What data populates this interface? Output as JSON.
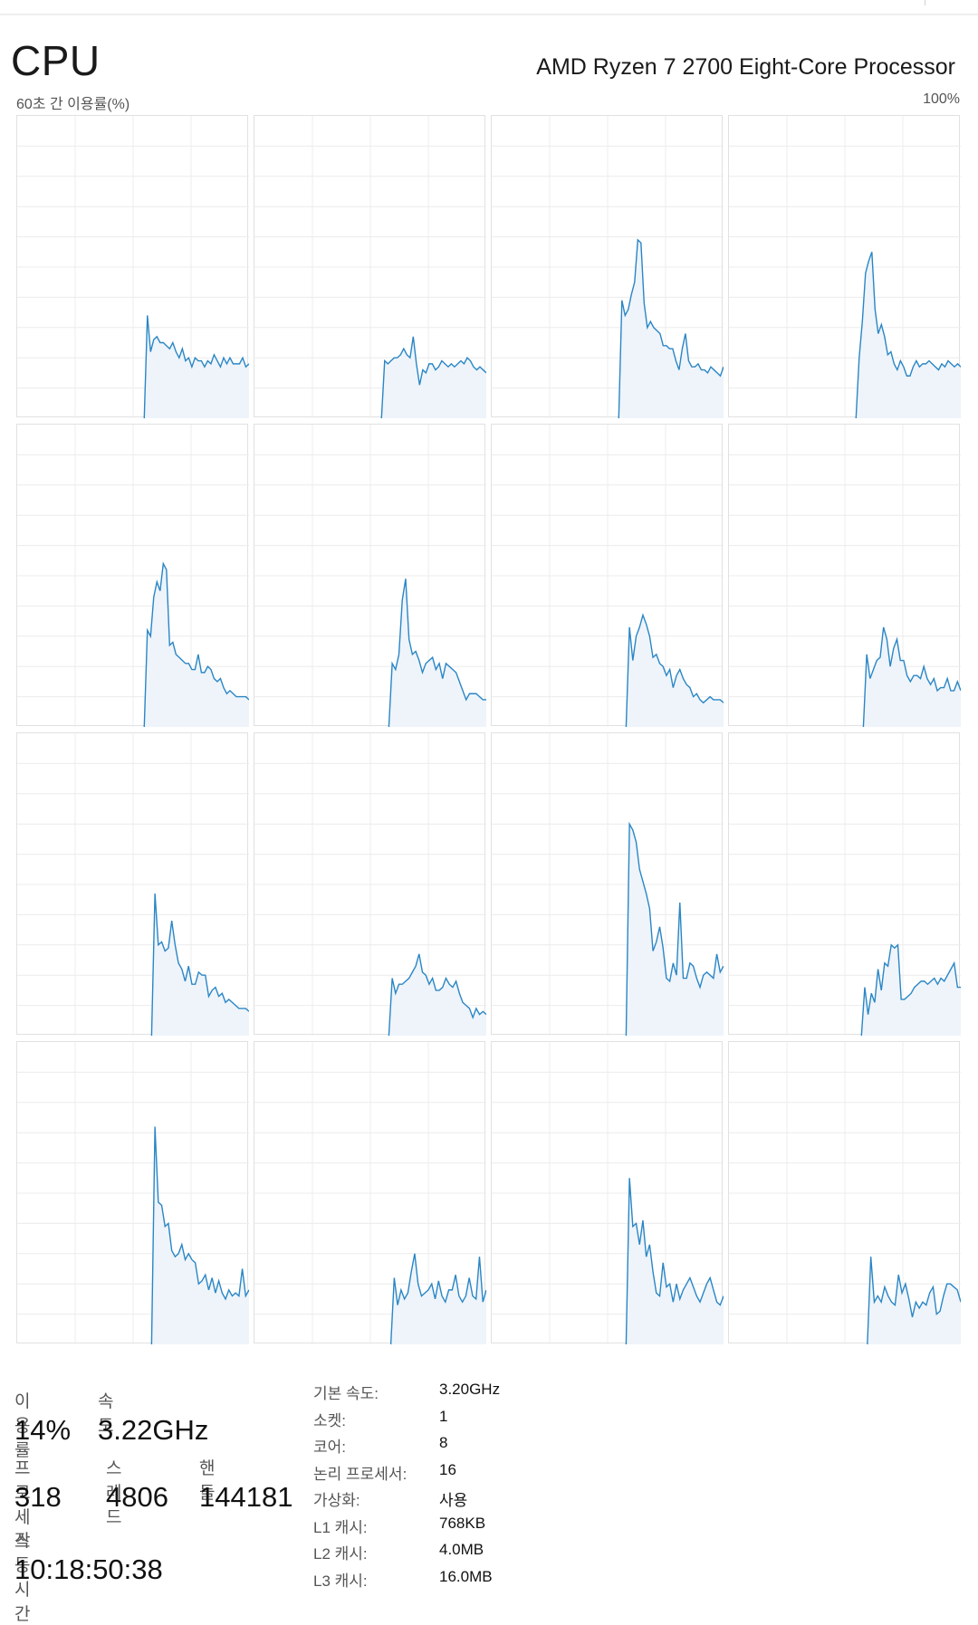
{
  "header": {
    "title": "CPU",
    "processor": "AMD Ryzen 7 2700 Eight-Core Processor",
    "graph_caption": "60초 간 이용률(%)",
    "graph_max": "100%"
  },
  "colors": {
    "line": "#2a86c5",
    "fill": "#eef4fa",
    "grid": "#ececec",
    "border": "#e1e1e1"
  },
  "cores": [
    {
      "values": [
        null,
        null,
        null,
        null,
        null,
        null,
        null,
        null,
        null,
        null,
        null,
        null,
        null,
        null,
        null,
        null,
        null,
        null,
        null,
        null,
        null,
        null,
        null,
        null,
        null,
        null,
        null,
        null,
        null,
        null,
        null,
        null,
        null,
        null,
        null,
        null,
        null,
        null,
        null,
        null,
        0,
        34,
        22,
        26,
        27,
        25,
        25,
        24,
        23,
        25,
        22,
        20,
        23,
        19,
        20,
        17,
        20,
        19,
        19,
        17,
        19,
        18,
        21,
        19,
        17,
        20,
        18,
        20,
        18,
        18,
        18,
        20,
        17,
        18
      ]
    },
    {
      "values": [
        null,
        null,
        null,
        null,
        null,
        null,
        null,
        null,
        null,
        null,
        null,
        null,
        null,
        null,
        null,
        null,
        null,
        null,
        null,
        null,
        null,
        null,
        null,
        null,
        null,
        null,
        null,
        null,
        null,
        null,
        null,
        null,
        null,
        null,
        null,
        null,
        null,
        null,
        null,
        null,
        0,
        19,
        18,
        19,
        20,
        20,
        21,
        23,
        21,
        20,
        27,
        18,
        11,
        16,
        15,
        18,
        18,
        16,
        17,
        19,
        18,
        17,
        18,
        17,
        18,
        19,
        18,
        20,
        19,
        17,
        16,
        17,
        16,
        15
      ]
    },
    {
      "values": [
        null,
        null,
        null,
        null,
        null,
        null,
        null,
        null,
        null,
        null,
        null,
        null,
        null,
        null,
        null,
        null,
        null,
        null,
        null,
        null,
        null,
        null,
        null,
        null,
        null,
        null,
        null,
        null,
        null,
        null,
        null,
        null,
        null,
        null,
        null,
        null,
        null,
        null,
        null,
        null,
        0,
        39,
        34,
        36,
        41,
        45,
        59,
        58,
        38,
        30,
        32,
        30,
        29,
        28,
        24,
        24,
        23,
        23,
        19,
        16,
        23,
        28,
        19,
        17,
        17,
        18,
        16,
        16,
        15,
        17,
        16,
        15,
        14,
        17
      ]
    },
    {
      "values": [
        null,
        null,
        null,
        null,
        null,
        null,
        null,
        null,
        null,
        null,
        null,
        null,
        null,
        null,
        null,
        null,
        null,
        null,
        null,
        null,
        null,
        null,
        null,
        null,
        null,
        null,
        null,
        null,
        null,
        null,
        null,
        null,
        null,
        null,
        null,
        null,
        null,
        null,
        null,
        null,
        0,
        20,
        32,
        48,
        52,
        55,
        36,
        28,
        31,
        27,
        21,
        22,
        18,
        16,
        19,
        17,
        14,
        14,
        17,
        19,
        17,
        18,
        18,
        19,
        18,
        17,
        16,
        18,
        17,
        19,
        18,
        17,
        18,
        17
      ]
    },
    {
      "values": [
        null,
        null,
        null,
        null,
        null,
        null,
        null,
        null,
        null,
        null,
        null,
        null,
        null,
        null,
        null,
        null,
        null,
        null,
        null,
        null,
        null,
        null,
        null,
        null,
        null,
        null,
        null,
        null,
        null,
        null,
        null,
        null,
        null,
        null,
        null,
        null,
        null,
        null,
        null,
        null,
        0,
        32,
        30,
        43,
        48,
        45,
        54,
        52,
        27,
        28,
        24,
        23,
        22,
        21,
        21,
        19,
        19,
        24,
        18,
        18,
        20,
        19,
        16,
        15,
        16,
        13,
        11,
        12,
        11,
        10,
        10,
        10,
        10,
        9
      ]
    },
    {
      "values": [
        null,
        null,
        null,
        null,
        null,
        null,
        null,
        null,
        null,
        null,
        null,
        null,
        null,
        null,
        null,
        null,
        null,
        null,
        null,
        null,
        null,
        null,
        null,
        null,
        null,
        null,
        null,
        null,
        null,
        null,
        null,
        null,
        null,
        null,
        null,
        null,
        null,
        null,
        null,
        null,
        0,
        21,
        19,
        24,
        42,
        49,
        29,
        24,
        25,
        22,
        18,
        21,
        22,
        23,
        19,
        21,
        16,
        21,
        20,
        19,
        18,
        15,
        12,
        9,
        11,
        11,
        11,
        10,
        9,
        9
      ]
    },
    {
      "values": [
        null,
        null,
        null,
        null,
        null,
        null,
        null,
        null,
        null,
        null,
        null,
        null,
        null,
        null,
        null,
        null,
        null,
        null,
        null,
        null,
        null,
        null,
        null,
        null,
        null,
        null,
        null,
        null,
        null,
        null,
        null,
        null,
        null,
        null,
        null,
        null,
        null,
        null,
        null,
        null,
        0,
        33,
        22,
        30,
        33,
        37,
        34,
        30,
        23,
        24,
        21,
        20,
        17,
        19,
        13,
        17,
        19,
        16,
        14,
        13,
        10,
        11,
        9,
        8,
        9,
        10,
        9,
        9,
        9,
        8
      ]
    },
    {
      "values": [
        null,
        null,
        null,
        null,
        null,
        null,
        null,
        null,
        null,
        null,
        null,
        null,
        null,
        null,
        null,
        null,
        null,
        null,
        null,
        null,
        null,
        null,
        null,
        null,
        null,
        null,
        null,
        null,
        null,
        null,
        null,
        null,
        null,
        null,
        null,
        null,
        null,
        null,
        null,
        null,
        0,
        24,
        16,
        19,
        22,
        23,
        33,
        29,
        20,
        26,
        29,
        22,
        22,
        17,
        15,
        17,
        17,
        16,
        20,
        16,
        14,
        16,
        12,
        13,
        13,
        16,
        12,
        12,
        15,
        12
      ]
    },
    {
      "values": [
        null,
        null,
        null,
        null,
        null,
        null,
        null,
        null,
        null,
        null,
        null,
        null,
        null,
        null,
        null,
        null,
        null,
        null,
        null,
        null,
        null,
        null,
        null,
        null,
        null,
        null,
        null,
        null,
        null,
        null,
        null,
        null,
        null,
        null,
        null,
        null,
        null,
        null,
        null,
        null,
        0,
        47,
        30,
        31,
        28,
        29,
        38,
        30,
        24,
        22,
        18,
        23,
        17,
        17,
        21,
        20,
        20,
        13,
        15,
        16,
        13,
        14,
        11,
        12,
        11,
        10,
        9,
        9,
        9,
        8
      ]
    },
    {
      "values": [
        null,
        null,
        null,
        null,
        null,
        null,
        null,
        null,
        null,
        null,
        null,
        null,
        null,
        null,
        null,
        null,
        null,
        null,
        null,
        null,
        null,
        null,
        null,
        null,
        null,
        null,
        null,
        null,
        null,
        null,
        null,
        null,
        null,
        null,
        null,
        null,
        null,
        null,
        null,
        null,
        0,
        19,
        14,
        17,
        17,
        18,
        19,
        21,
        23,
        27,
        21,
        20,
        17,
        19,
        15,
        15,
        16,
        19,
        17,
        16,
        18,
        14,
        11,
        10,
        9,
        6,
        9,
        7,
        8,
        7
      ]
    },
    {
      "values": [
        null,
        null,
        null,
        null,
        null,
        null,
        null,
        null,
        null,
        null,
        null,
        null,
        null,
        null,
        null,
        null,
        null,
        null,
        null,
        null,
        null,
        null,
        null,
        null,
        null,
        null,
        null,
        null,
        null,
        null,
        null,
        null,
        null,
        null,
        null,
        null,
        null,
        null,
        null,
        null,
        0,
        70,
        68,
        64,
        55,
        51,
        47,
        42,
        28,
        31,
        36,
        29,
        19,
        18,
        24,
        20,
        44,
        19,
        19,
        24,
        23,
        19,
        16,
        20,
        21,
        20,
        19,
        27,
        21,
        23
      ]
    },
    {
      "values": [
        null,
        null,
        null,
        null,
        null,
        null,
        null,
        null,
        null,
        null,
        null,
        null,
        null,
        null,
        null,
        null,
        null,
        null,
        null,
        null,
        null,
        null,
        null,
        null,
        null,
        null,
        null,
        null,
        null,
        null,
        null,
        null,
        null,
        null,
        null,
        null,
        null,
        null,
        null,
        null,
        0,
        16,
        7,
        14,
        11,
        22,
        15,
        24,
        23,
        30,
        29,
        30,
        12,
        12,
        13,
        14,
        16,
        17,
        18,
        18,
        17,
        18,
        19,
        17,
        19,
        18,
        20,
        22,
        24,
        16,
        16
      ]
    },
    {
      "values": [
        null,
        null,
        null,
        null,
        null,
        null,
        null,
        null,
        null,
        null,
        null,
        null,
        null,
        null,
        null,
        null,
        null,
        null,
        null,
        null,
        null,
        null,
        null,
        null,
        null,
        null,
        null,
        null,
        null,
        null,
        null,
        null,
        null,
        null,
        null,
        null,
        null,
        null,
        null,
        null,
        0,
        72,
        47,
        46,
        39,
        40,
        31,
        29,
        30,
        33,
        28,
        30,
        28,
        27,
        20,
        21,
        23,
        18,
        22,
        17,
        21,
        17,
        15,
        18,
        16,
        17,
        16,
        25,
        16,
        18
      ]
    },
    {
      "values": [
        null,
        null,
        null,
        null,
        null,
        null,
        null,
        null,
        null,
        null,
        null,
        null,
        null,
        null,
        null,
        null,
        null,
        null,
        null,
        null,
        null,
        null,
        null,
        null,
        null,
        null,
        null,
        null,
        null,
        null,
        null,
        null,
        null,
        null,
        null,
        null,
        null,
        null,
        null,
        null,
        0,
        22,
        13,
        18,
        15,
        17,
        24,
        30,
        20,
        16,
        17,
        18,
        20,
        15,
        21,
        16,
        14,
        18,
        18,
        23,
        16,
        14,
        16,
        22,
        16,
        15,
        29,
        14,
        18
      ]
    },
    {
      "values": [
        null,
        null,
        null,
        null,
        null,
        null,
        null,
        null,
        null,
        null,
        null,
        null,
        null,
        null,
        null,
        null,
        null,
        null,
        null,
        null,
        null,
        null,
        null,
        null,
        null,
        null,
        null,
        null,
        null,
        null,
        null,
        null,
        null,
        null,
        null,
        null,
        null,
        null,
        null,
        null,
        0,
        55,
        39,
        40,
        33,
        41,
        29,
        33,
        24,
        17,
        16,
        27,
        19,
        20,
        14,
        20,
        15,
        18,
        20,
        22,
        19,
        16,
        14,
        17,
        20,
        22,
        18,
        14,
        13,
        16
      ]
    },
    {
      "values": [
        null,
        null,
        null,
        null,
        null,
        null,
        null,
        null,
        null,
        null,
        null,
        null,
        null,
        null,
        null,
        null,
        null,
        null,
        null,
        null,
        null,
        null,
        null,
        null,
        null,
        null,
        null,
        null,
        null,
        null,
        null,
        null,
        null,
        null,
        null,
        null,
        null,
        null,
        null,
        null,
        0,
        29,
        14,
        16,
        14,
        19,
        16,
        14,
        13,
        23,
        17,
        20,
        15,
        9,
        14,
        12,
        14,
        13,
        17,
        19,
        10,
        11,
        16,
        20,
        20,
        19,
        18,
        14
      ]
    }
  ],
  "stats": {
    "usage": {
      "label": "이용률",
      "value": "14%"
    },
    "speed": {
      "label": "속도",
      "value": "3.22GHz"
    },
    "processes": {
      "label": "프로세스",
      "value": "318"
    },
    "threads": {
      "label": "스레드",
      "value": "4806"
    },
    "handles": {
      "label": "핸들",
      "value": "144181"
    },
    "uptime": {
      "label": "작동 시간",
      "value": "10:18:50:38"
    }
  },
  "specs": [
    {
      "key": "기본 속도:",
      "value": "3.20GHz"
    },
    {
      "key": "소켓:",
      "value": "1"
    },
    {
      "key": "코어:",
      "value": "8"
    },
    {
      "key": "논리 프로세서:",
      "value": "16"
    },
    {
      "key": "가상화:",
      "value": "사용"
    },
    {
      "key": "L1 캐시:",
      "value": "768KB"
    },
    {
      "key": "L2 캐시:",
      "value": "4.0MB"
    },
    {
      "key": "L3 캐시:",
      "value": "16.0MB"
    }
  ]
}
